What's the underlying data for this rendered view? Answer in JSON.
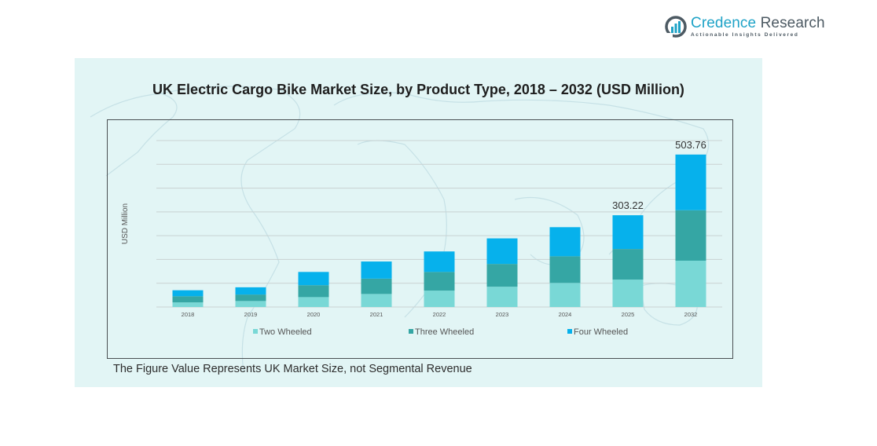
{
  "brand": {
    "name_part1": "Credence",
    "name_part2": "Research",
    "tagline": "Actionable Insights Delivered",
    "logo_icon": "bar-chart-circle-icon"
  },
  "footnote": "The Figure Value Represents UK Market Size, not Segmental Revenue",
  "colors": {
    "two_wheeled": "#79d8d6",
    "three_wheeled": "#35a6a4",
    "four_wheeled": "#06b1ec",
    "panel_bg": "#e2f5f5",
    "gridline": "#c9d2d2"
  },
  "chart_data": {
    "type": "bar",
    "stacked": true,
    "title": "UK Electric Cargo Bike Market Size, by Product Type, 2018 – 2032 (USD Million)",
    "xlabel": "",
    "ylabel": "USD Million",
    "categories": [
      "2018",
      "2019",
      "2020",
      "2021",
      "2022",
      "2023",
      "2024",
      "2025",
      "2032"
    ],
    "series": [
      {
        "name": "Two Wheeled",
        "values": [
          15.3,
          19.8,
          32.7,
          43.1,
          54.2,
          67.1,
          79.5,
          90.6,
          153.1
        ]
      },
      {
        "name": "Three Wheeled",
        "values": [
          20.3,
          21.4,
          39.4,
          50.7,
          61.7,
          75.2,
          88.2,
          101.1,
          166.7
        ]
      },
      {
        "name": "Four Wheeled",
        "values": [
          19.8,
          24.0,
          43.8,
          56.6,
          67.7,
          84.5,
          96.1,
          111.52,
          183.96
        ]
      }
    ],
    "data_labels": [
      {
        "category": "2025",
        "text": "303.22"
      },
      {
        "category": "2032",
        "text": "503.76"
      }
    ],
    "ylim": [
      0,
      550
    ],
    "y_tick_labels_visible": false,
    "grid": true,
    "gridline_count": 7,
    "legend": {
      "position": "bottom",
      "entries": [
        "Two Wheeled",
        "Three Wheeled",
        "Four Wheeled"
      ]
    }
  }
}
